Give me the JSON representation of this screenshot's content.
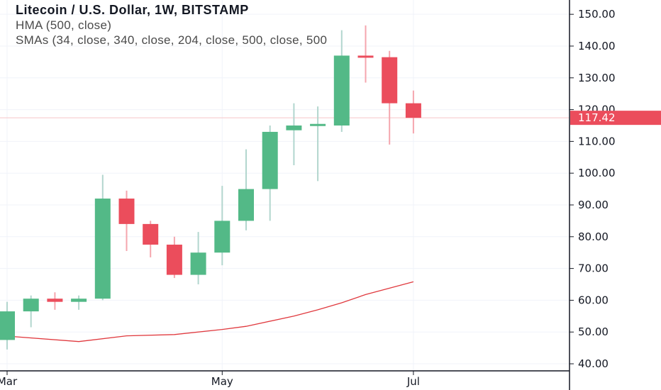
{
  "header": {
    "title": "Litecoin / U.S. Dollar, 1W, BITSTAMP",
    "hma": "HMA (500, close)",
    "smas": "SMAs (34, close, 340, close, 204, close, 500, close, 500"
  },
  "colors": {
    "up": "#53b987",
    "down": "#eb4d5c",
    "wick_up": "#b2d6ce",
    "wick_down": "#f5a6ae",
    "ma_line": "#e0393e",
    "price_line": "#f7c5c8",
    "axis": "#131722",
    "grid": "#f0f3fa"
  },
  "price_label": "117.42",
  "chart_data": {
    "type": "candlestick",
    "title": "Litecoin / U.S. Dollar, 1W, BITSTAMP",
    "ylim": [
      38.0,
      154.5
    ],
    "y_ticks": [
      "40.00",
      "50.00",
      "60.00",
      "70.00",
      "80.00",
      "90.00",
      "100.00",
      "110.00",
      "120.00",
      "130.00",
      "140.00",
      "150.00"
    ],
    "x_ticks": [
      {
        "label": "Mar",
        "index": 0
      },
      {
        "label": "May",
        "index": 9
      },
      {
        "label": "Jul",
        "index": 17
      }
    ],
    "last_price": 117.42,
    "candles": [
      {
        "o": 47.5,
        "h": 59.5,
        "l": 44.5,
        "c": 56.5
      },
      {
        "o": 56.5,
        "h": 61.5,
        "l": 51.5,
        "c": 60.5
      },
      {
        "o": 60.5,
        "h": 62.5,
        "l": 57.0,
        "c": 59.5
      },
      {
        "o": 59.5,
        "h": 61.5,
        "l": 57.0,
        "c": 60.5
      },
      {
        "o": 60.5,
        "h": 99.5,
        "l": 60.0,
        "c": 92.0
      },
      {
        "o": 92.0,
        "h": 94.5,
        "l": 75.5,
        "c": 84.0
      },
      {
        "o": 84.0,
        "h": 85.0,
        "l": 73.5,
        "c": 77.5
      },
      {
        "o": 77.5,
        "h": 80.0,
        "l": 67.0,
        "c": 68.0
      },
      {
        "o": 68.0,
        "h": 81.5,
        "l": 65.0,
        "c": 75.0
      },
      {
        "o": 75.0,
        "h": 96.0,
        "l": 71.0,
        "c": 85.0
      },
      {
        "o": 85.0,
        "h": 107.5,
        "l": 82.0,
        "c": 95.0
      },
      {
        "o": 95.0,
        "h": 115.0,
        "l": 85.0,
        "c": 113.0
      },
      {
        "o": 113.5,
        "h": 122.0,
        "l": 102.5,
        "c": 115.0
      },
      {
        "o": 115.0,
        "h": 121.0,
        "l": 97.5,
        "c": 115.5
      },
      {
        "o": 115.0,
        "h": 145.0,
        "l": 113.0,
        "c": 137.0
      },
      {
        "o": 137.0,
        "h": 146.5,
        "l": 128.5,
        "c": 136.5
      },
      {
        "o": 136.5,
        "h": 138.5,
        "l": 109.0,
        "c": 122.0
      },
      {
        "o": 122.0,
        "h": 126.0,
        "l": 112.5,
        "c": 117.42
      }
    ],
    "ma_line": [
      {
        "i": -0.5,
        "v": 49.0
      },
      {
        "i": 3.0,
        "v": 47.0
      },
      {
        "i": 5.0,
        "v": 48.8
      },
      {
        "i": 7.0,
        "v": 49.2
      },
      {
        "i": 9.0,
        "v": 50.8
      },
      {
        "i": 10.0,
        "v": 51.8
      },
      {
        "i": 12.0,
        "v": 55.0
      },
      {
        "i": 13.0,
        "v": 57.0
      },
      {
        "i": 14.0,
        "v": 59.2
      },
      {
        "i": 15.0,
        "v": 61.8
      },
      {
        "i": 16.0,
        "v": 63.8
      },
      {
        "i": 17.0,
        "v": 65.8
      }
    ]
  }
}
